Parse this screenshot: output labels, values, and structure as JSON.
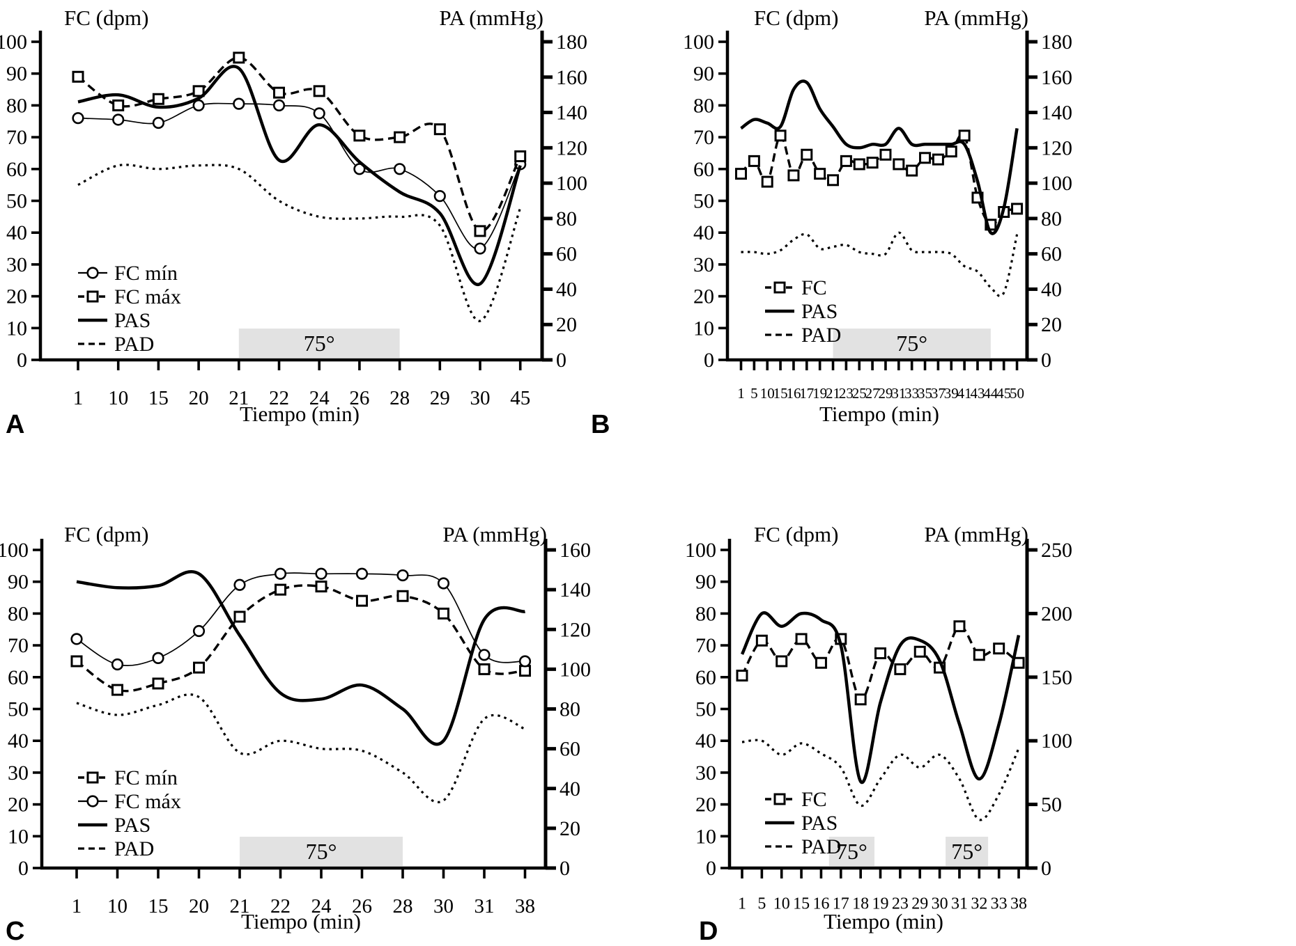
{
  "figure": {
    "background": "#ffffff",
    "band_color": "#e2e2e2",
    "line_color": "#000000"
  },
  "chart_data": [
    {
      "type": "line",
      "panel_label": "A",
      "title_left": "FC (dpm)",
      "title_right": "PA (mmHg)",
      "x_title": "Tiempo (min)",
      "x_labels": [
        "1",
        "10",
        "15",
        "20",
        "21",
        "22",
        "24",
        "26",
        "28",
        "29",
        "30",
        "45"
      ],
      "y_left": {
        "label": "FC (dpm)",
        "min": 0,
        "max": 100,
        "ticks": [
          "0",
          "10",
          "20",
          "30",
          "40",
          "50",
          "60",
          "70",
          "80",
          "90",
          "100"
        ]
      },
      "y_right": {
        "label": "PA (mmHg)",
        "min": 0,
        "max": 180,
        "ticks": [
          "0",
          "20",
          "40",
          "60",
          "80",
          "100",
          "120",
          "140",
          "160",
          "180"
        ]
      },
      "bands": [
        {
          "label": "75°",
          "from_idx": 4,
          "to_idx": 8
        }
      ],
      "legend": [
        {
          "label": "FC mín",
          "style": "fc_circle"
        },
        {
          "label": "FC máx",
          "style": "fc_square"
        },
        {
          "label": "PAS",
          "style": "pas"
        },
        {
          "label": "PAD",
          "style": "pad"
        }
      ],
      "series": [
        {
          "name": "FC mín",
          "style": "fc_circle",
          "axis": "left",
          "values": [
            76,
            75.5,
            74.5,
            80,
            80.5,
            80,
            77.5,
            60,
            60,
            51.5,
            35,
            61.5
          ]
        },
        {
          "name": "FC máx",
          "style": "fc_square",
          "axis": "left",
          "values": [
            89,
            80,
            82,
            84.5,
            95,
            84,
            84.5,
            70.5,
            70,
            72.5,
            40.5,
            64
          ]
        },
        {
          "name": "PAS",
          "style": "pas",
          "axis": "right",
          "values": [
            146,
            150,
            143,
            148,
            165,
            113,
            133,
            112,
            95,
            83,
            43,
            110
          ]
        },
        {
          "name": "PAD",
          "style": "pad",
          "axis": "right",
          "values": [
            99,
            110,
            108,
            110,
            108,
            90,
            81,
            80,
            81,
            76,
            22,
            86
          ]
        }
      ]
    },
    {
      "type": "line",
      "panel_label": "B",
      "title_left": "FC (dpm)",
      "title_right": "PA (mmHg)",
      "x_title": "Tiempo (min)",
      "x_labels": [
        "1",
        "5",
        "10",
        "15",
        "16",
        "17",
        "19",
        "21",
        "23",
        "25",
        "27",
        "29",
        "31",
        "33",
        "35",
        "37",
        "39",
        "41",
        "43",
        "44",
        "45",
        "50"
      ],
      "y_left": {
        "label": "FC (dpm)",
        "min": 0,
        "max": 100,
        "ticks": [
          "0",
          "10",
          "20",
          "30",
          "40",
          "50",
          "60",
          "70",
          "80",
          "90",
          "100"
        ]
      },
      "y_right": {
        "label": "PA (mmHg)",
        "min": 0,
        "max": 180,
        "ticks": [
          "0",
          "20",
          "40",
          "60",
          "80",
          "100",
          "120",
          "140",
          "160",
          "180"
        ]
      },
      "bands": [
        {
          "label": "75°",
          "from_idx": 7,
          "to_idx": 19
        }
      ],
      "legend": [
        {
          "label": "FC",
          "style": "fc_square"
        },
        {
          "label": "PAS",
          "style": "pas"
        },
        {
          "label": "PAD",
          "style": "pad"
        }
      ],
      "series": [
        {
          "name": "FC",
          "style": "fc_square",
          "axis": "left",
          "values": [
            58.5,
            62.5,
            56,
            70.5,
            58,
            64.5,
            58.5,
            56.5,
            62.5,
            61.5,
            62,
            64.5,
            61.5,
            59.5,
            63.5,
            63,
            65.5,
            70.5,
            51,
            42.5,
            46.5,
            47.5
          ]
        },
        {
          "name": "PAS",
          "style": "pas",
          "axis": "right",
          "values": [
            131,
            136,
            134,
            132,
            153,
            157,
            142,
            132,
            122,
            120,
            122,
            122,
            131,
            122,
            122,
            122,
            122,
            122,
            101,
            72,
            86,
            131
          ]
        },
        {
          "name": "PAD",
          "style": "pad",
          "axis": "right",
          "values": [
            61,
            61,
            60,
            62,
            68,
            71,
            63,
            64,
            65,
            61,
            60,
            60,
            72,
            62,
            61,
            61,
            60,
            53,
            50,
            41,
            38,
            71
          ]
        }
      ]
    },
    {
      "type": "line",
      "panel_label": "C",
      "title_left": "FC (dpm)",
      "title_right": "PA (mmHg)",
      "x_title": "Tiempo (min)",
      "x_labels": [
        "1",
        "10",
        "15",
        "20",
        "21",
        "22",
        "24",
        "26",
        "28",
        "30",
        "31",
        "38"
      ],
      "y_left": {
        "label": "FC (dpm)",
        "min": 0,
        "max": 100,
        "ticks": [
          "0",
          "10",
          "20",
          "30",
          "40",
          "50",
          "60",
          "70",
          "80",
          "90",
          "100"
        ]
      },
      "y_right": {
        "label": "PA (mmHg)",
        "min": 0,
        "max": 160,
        "ticks": [
          "0",
          "20",
          "40",
          "60",
          "80",
          "100",
          "120",
          "140",
          "160"
        ]
      },
      "bands": [
        {
          "label": "75°",
          "from_idx": 4,
          "to_idx": 8
        }
      ],
      "legend": [
        {
          "label": "FC mín",
          "style": "fc_square"
        },
        {
          "label": "FC máx",
          "style": "fc_circle"
        },
        {
          "label": "PAS",
          "style": "pas"
        },
        {
          "label": "PAD",
          "style": "pad"
        }
      ],
      "series": [
        {
          "name": "FC mín",
          "style": "fc_square",
          "axis": "left",
          "values": [
            65,
            56,
            58,
            63,
            79,
            87.5,
            88.5,
            84,
            85.5,
            80,
            62.5,
            62
          ]
        },
        {
          "name": "FC máx",
          "style": "fc_circle",
          "axis": "left",
          "values": [
            72,
            64,
            66,
            74.5,
            89,
            92.5,
            92.5,
            92.5,
            92,
            89.5,
            67,
            65
          ]
        },
        {
          "name": "PAS",
          "style": "pas",
          "axis": "right",
          "values": [
            144,
            141,
            142,
            148,
            117,
            88,
            85,
            92,
            80,
            64,
            125,
            129
          ]
        },
        {
          "name": "PAD",
          "style": "pad",
          "axis": "right",
          "values": [
            83,
            77,
            82,
            86,
            58,
            64,
            60,
            59,
            48,
            34,
            75,
            70
          ]
        }
      ]
    },
    {
      "type": "line",
      "panel_label": "D",
      "title_left": "FC (dpm)",
      "title_right": "PA (mmHg)",
      "x_title": "Tiempo (min)",
      "x_labels": [
        "1",
        "5",
        "10",
        "15",
        "16",
        "17",
        "18",
        "19",
        "23",
        "29",
        "30",
        "31",
        "32",
        "33",
        "38"
      ],
      "y_left": {
        "label": "FC (dpm)",
        "min": 0,
        "max": 100,
        "ticks": [
          "0",
          "10",
          "20",
          "30",
          "40",
          "50",
          "60",
          "70",
          "80",
          "90",
          "100"
        ]
      },
      "y_right": {
        "label": "PA (mmHg)",
        "min": 0,
        "max": 250,
        "ticks": [
          "0",
          "50",
          "100",
          "150",
          "200",
          "250"
        ]
      },
      "bands": [
        {
          "label": "75°",
          "from_idx": 4.4,
          "to_idx": 6.7
        },
        {
          "label": "75°",
          "from_idx": 10.3,
          "to_idx": 12.45
        }
      ],
      "legend": [
        {
          "label": "FC",
          "style": "fc_square"
        },
        {
          "label": "PAS",
          "style": "pas"
        },
        {
          "label": "PAD",
          "style": "pad"
        }
      ],
      "series": [
        {
          "name": "FC",
          "style": "fc_square",
          "axis": "left",
          "values": [
            60.5,
            71.5,
            65,
            72,
            64.5,
            72,
            53,
            67.5,
            62.5,
            68,
            63,
            76,
            67,
            69,
            64.5
          ]
        },
        {
          "name": "PAS",
          "style": "pas",
          "axis": "right",
          "values": [
            168,
            200,
            190,
            200,
            195,
            175,
            68,
            130,
            175,
            179,
            163,
            113,
            70,
            113,
            183
          ]
        },
        {
          "name": "PAD",
          "style": "pad",
          "axis": "right",
          "values": [
            99,
            100,
            89,
            98,
            90,
            79,
            49,
            70,
            89,
            79,
            89,
            70,
            38,
            58,
            94
          ]
        }
      ]
    }
  ]
}
